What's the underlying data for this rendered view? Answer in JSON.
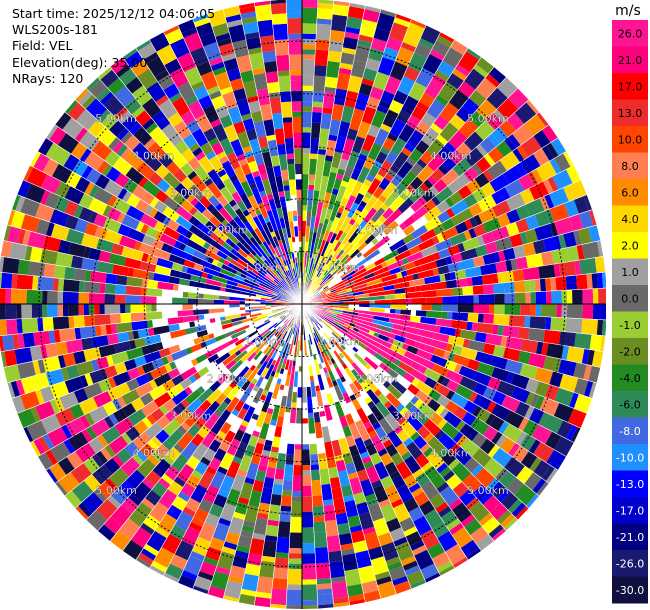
{
  "info": {
    "start_time": "Start time: 2025/12/12 04:06:05",
    "instrument": "WLS200s-181",
    "field": "Field: VEL",
    "elevation": "Elevation(deg): 35.00",
    "nrays": "NRays: 120"
  },
  "chart_data": {
    "type": "polar-ppi",
    "n_rays": 120,
    "range_km_max": 5.8,
    "rings_km": [
      1,
      2,
      3,
      4,
      5
    ],
    "ring_labels": [
      "1.00km",
      "2.00km",
      "3.00km",
      "4.00km",
      "5.00km"
    ],
    "colorbar": {
      "unit": "m/s",
      "ticks": [
        "26.0",
        "21.0",
        "17.0",
        "13.0",
        "10.0",
        "8.0",
        "6.0",
        "4.0",
        "2.0",
        "1.0",
        "0.0",
        "-1.0",
        "-2.0",
        "-4.0",
        "-6.0",
        "-8.0",
        "-10.0",
        "-13.0",
        "-17.0",
        "-21.0",
        "-26.0",
        "-30.0"
      ],
      "colors": [
        "#ff1493",
        "#ff007f",
        "#ff0000",
        "#ee2c2c",
        "#ff4500",
        "#ff7f50",
        "#ff8c00",
        "#ffd700",
        "#ffff00",
        "#a0a0a0",
        "#696969",
        "#9acd32",
        "#6b8e23",
        "#228b22",
        "#2e8b57",
        "#4169e1",
        "#1e90ff",
        "#0000ff",
        "#0000cd",
        "#000080",
        "#191970",
        "#101040"
      ]
    }
  }
}
